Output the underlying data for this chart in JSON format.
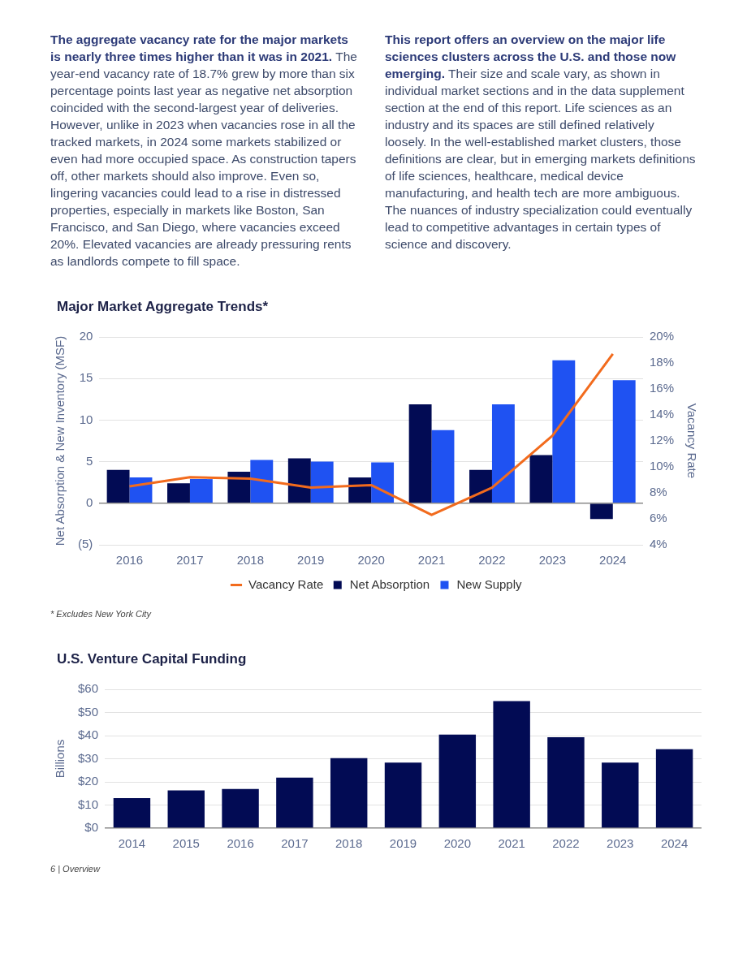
{
  "chart_data": [
    {
      "type": "other",
      "title": "The aggregate vacancy rate for the major markets is nearly three times higher than it was in 2021.",
      "annotations": [
        "The year-end vacancy rate of 18.7% grew by more than six percentage points last year as negative net absorption coincided with the second-largest year of deliveries. However, unlike in 2023 when vacancies rose in all the tracked markets, in 2024 some markets stabilized or even had more occupied space. As construction tapers off, other markets should also improve. Even so, lingering vacancies could lead to a rise in distressed properties, especially in markets like Boston, San Francisco, and San Diego, where vacancies exceed 20%. Elevated vacancies are already pressuring rents as landlords compete to fill space."
      ]
    },
    {
      "type": "other",
      "title": "This report offers an overview on the major life sciences clusters across the U.S. and those now emerging.",
      "annotations": [
        "Their size and scale vary, as shown in individual market sections and in the data supplement section at the end of this report. Life sciences as an industry and its spaces are still defined relatively loosely. In the well-established market clusters, those definitions are clear, but in emerging markets definitions of life sciences, healthcare, medical device manufacturing, and health tech are more ambiguous. The nuances of industry specialization could eventually lead to competitive advantages in certain types of science and discovery."
      ]
    },
    {
      "type": "bar",
      "title": "Major Market Aggregate Trends*",
      "ylabel": "Net Absorption & New Inventory (MSF)",
      "y2label": "Vacancy Rate",
      "categories": [
        "2016",
        "2017",
        "2018",
        "2019",
        "2020",
        "2021",
        "2022",
        "2023",
        "2024"
      ],
      "series": [
        {
          "name": "Net Absorption",
          "type": "bar",
          "color": "#020b54",
          "values": [
            4.0,
            2.4,
            3.8,
            5.4,
            3.1,
            11.9,
            4.0,
            5.8,
            -1.9
          ]
        },
        {
          "name": "New Supply",
          "type": "bar",
          "color": "#1f52f2",
          "values": [
            3.1,
            2.9,
            5.2,
            5.0,
            4.9,
            8.8,
            11.9,
            17.2,
            14.8
          ]
        },
        {
          "name": "Vacancy Rate",
          "type": "line",
          "axis": "y2",
          "color": "#f26b1d",
          "values": [
            8.5,
            9.2,
            9.1,
            8.4,
            8.6,
            6.3,
            8.4,
            12.4,
            18.7
          ]
        }
      ],
      "ylim": [
        -5,
        20
      ],
      "yticks": [
        {
          "value": -5,
          "label": "(5)"
        },
        0,
        5,
        10,
        15,
        20
      ],
      "y2lim": [
        4,
        20
      ],
      "y2ticks": [
        {
          "value": 4,
          "label": "4%"
        },
        {
          "value": 6,
          "label": "6%"
        },
        {
          "value": 8,
          "label": "8%"
        },
        {
          "value": 10,
          "label": "10%"
        },
        {
          "value": 12,
          "label": "12%"
        },
        {
          "value": 14,
          "label": "14%"
        },
        {
          "value": 16,
          "label": "16%"
        },
        {
          "value": 18,
          "label": "18%"
        },
        {
          "value": 20,
          "label": "20%"
        }
      ],
      "grid": "y",
      "legend": "bottom",
      "annotations": [
        "* Excludes New York City"
      ]
    },
    {
      "type": "bar",
      "title": "U.S. Venture Capital Funding",
      "ylabel": "Billions",
      "categories": [
        "2014",
        "2015",
        "2016",
        "2017",
        "2018",
        "2019",
        "2020",
        "2021",
        "2022",
        "2023",
        "2024"
      ],
      "values": [
        13.0,
        16.3,
        16.9,
        21.8,
        30.3,
        28.3,
        40.4,
        54.9,
        39.3,
        28.3,
        34.1
      ],
      "color": "#020b54",
      "ylim": [
        0,
        60
      ],
      "yticks": [
        {
          "value": 0,
          "label": "$0"
        },
        {
          "value": 10,
          "label": "$10"
        },
        {
          "value": 20,
          "label": "$20"
        },
        {
          "value": 30,
          "label": "$30"
        },
        {
          "value": 40,
          "label": "$40"
        },
        {
          "value": 50,
          "label": "$50"
        },
        {
          "value": 60,
          "label": "$60"
        }
      ],
      "grid": "y",
      "annotations": [
        "6 | Overview"
      ]
    }
  ]
}
